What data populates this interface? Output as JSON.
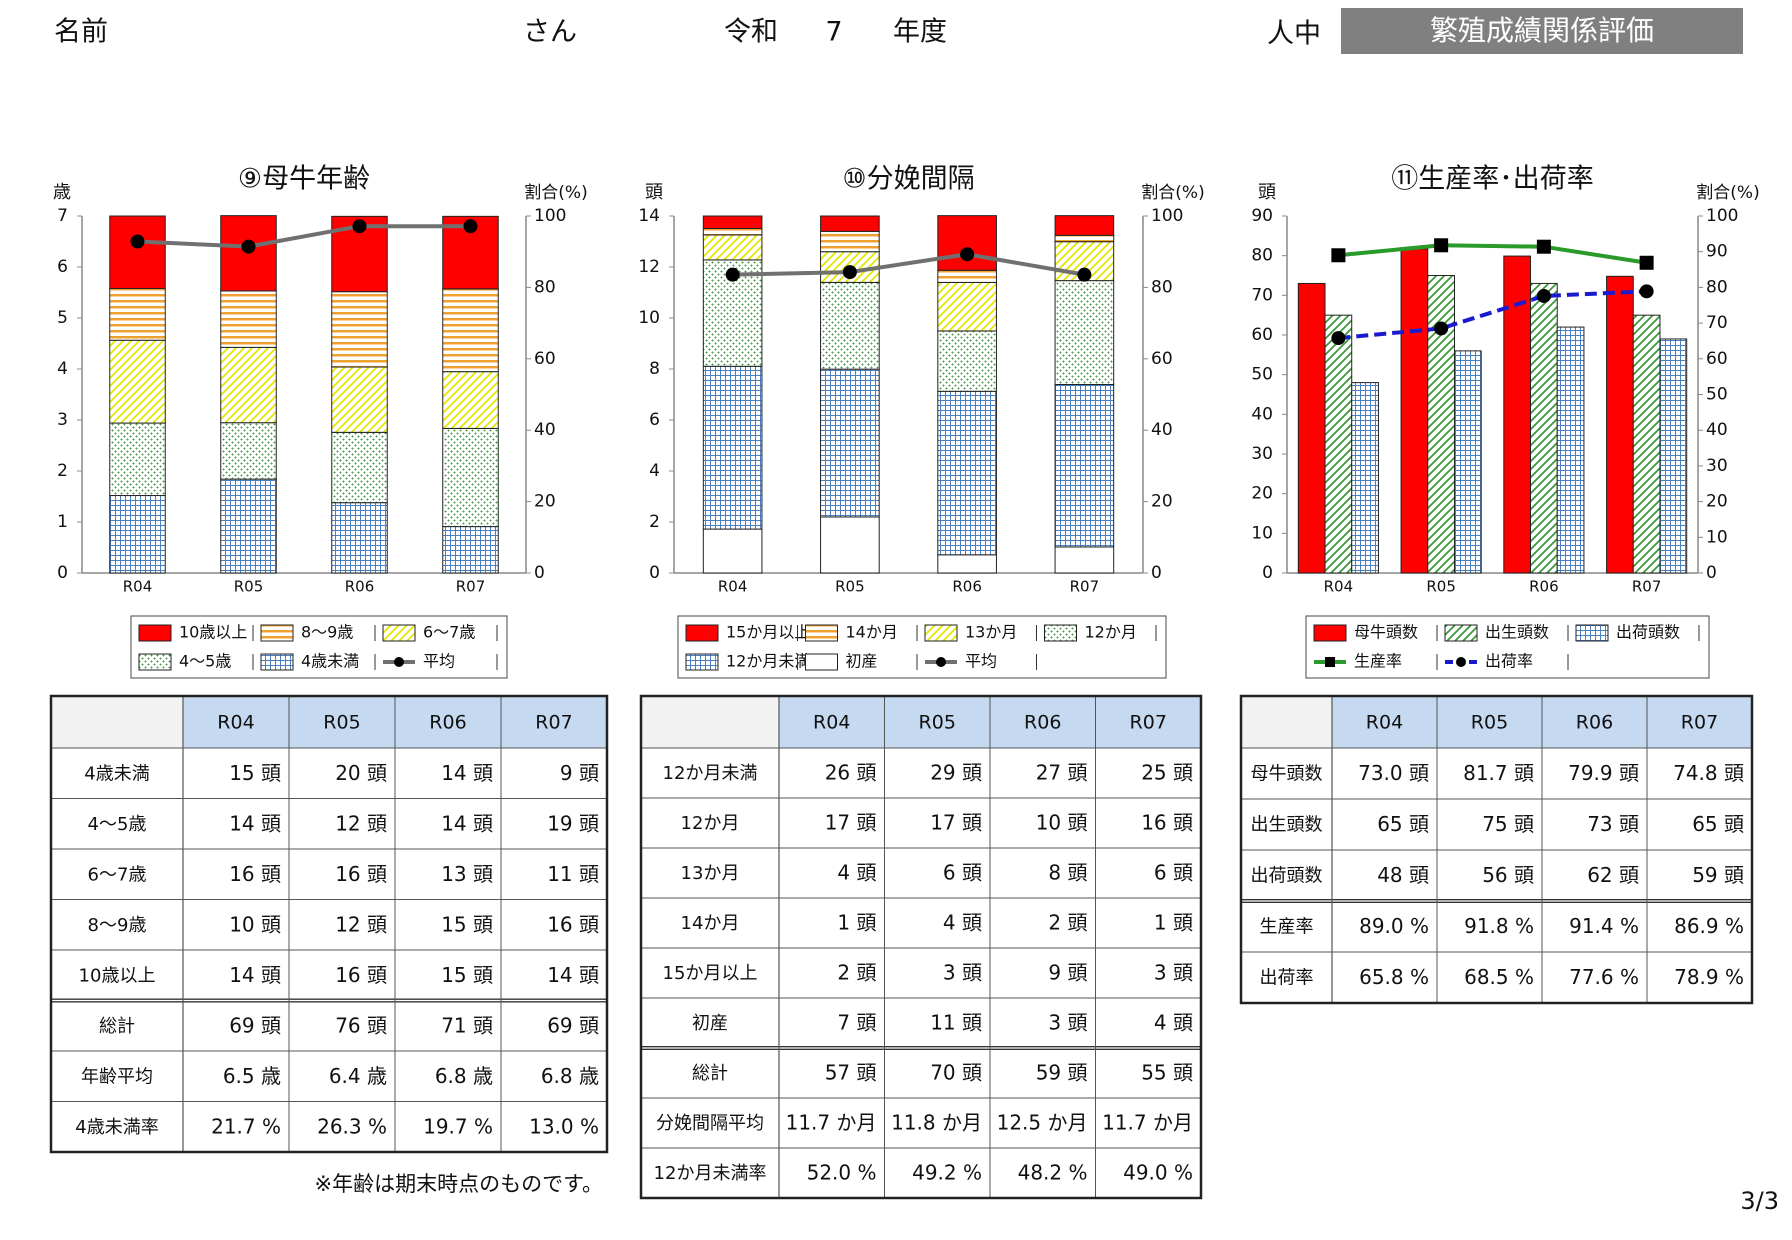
{
  "header": {
    "name_label": "名前",
    "san": "さん",
    "era": "令和",
    "year": "7",
    "nendo": "年度",
    "ninchu": "人中",
    "badge": "繁殖成績関係評価"
  },
  "chart_data": [
    {
      "type": "stacked_bar_line",
      "title": "⑨母牛年齢",
      "y_label": "歳",
      "y2_label": "割合(%)",
      "categories": [
        "R04",
        "R05",
        "R06",
        "R07"
      ],
      "ylim": [
        0,
        7
      ],
      "yticks": [
        0,
        1,
        2,
        3,
        4,
        5,
        6,
        7
      ],
      "y2lim": [
        0,
        100
      ],
      "y2ticks": [
        0,
        20,
        40,
        60,
        80,
        100
      ],
      "series": [
        {
          "name": "10歳以上",
          "color": "#ff0000",
          "pattern": "solid",
          "axis": "y2",
          "values": [
            20.3,
            21.1,
            21.1,
            20.3
          ]
        },
        {
          "name": "8～9歳",
          "color": "#f0a030",
          "pattern": "hstripe",
          "axis": "y2",
          "values": [
            14.5,
            15.8,
            21.1,
            23.2
          ]
        },
        {
          "name": "6～7歳",
          "color": "#e6e600",
          "pattern": "diagonal",
          "axis": "y2",
          "values": [
            23.2,
            21.1,
            18.3,
            15.9
          ]
        },
        {
          "name": "4～5歳",
          "color": "#4a9a4a",
          "pattern": "dots",
          "axis": "y2",
          "values": [
            20.3,
            15.8,
            19.7,
            27.5
          ]
        },
        {
          "name": "4歳未満",
          "color": "#4a7fc0",
          "pattern": "grid",
          "axis": "y2",
          "values": [
            21.7,
            26.3,
            19.7,
            13.0
          ]
        },
        {
          "name": "平均",
          "type": "line",
          "color": "#707070",
          "marker": "circle",
          "values": [
            6.5,
            6.4,
            6.8,
            6.8
          ]
        }
      ]
    },
    {
      "type": "stacked_bar_line",
      "title": "⑩分娩間隔",
      "y_label": "頭",
      "y2_label": "割合(%)",
      "categories": [
        "R04",
        "R05",
        "R06",
        "R07"
      ],
      "ylim": [
        0,
        14
      ],
      "yticks": [
        0,
        2,
        4,
        6,
        8,
        10,
        12,
        14
      ],
      "y2lim": [
        0,
        100
      ],
      "y2ticks": [
        0,
        20,
        40,
        60,
        80,
        100
      ],
      "series": [
        {
          "name": "15か月以上",
          "color": "#ff0000",
          "pattern": "solid",
          "axis": "y2",
          "values": [
            3.5,
            4.3,
            15.3,
            5.5
          ]
        },
        {
          "name": "14か月",
          "color": "#f0a030",
          "pattern": "hstripe",
          "axis": "y2",
          "values": [
            1.8,
            5.7,
            3.4,
            1.8
          ]
        },
        {
          "name": "13か月",
          "color": "#e6e600",
          "pattern": "diagonal",
          "axis": "y2",
          "values": [
            7.0,
            8.6,
            13.6,
            10.9
          ]
        },
        {
          "name": "12か月",
          "color": "#4a9a4a",
          "pattern": "dots",
          "axis": "y2",
          "values": [
            29.8,
            24.3,
            16.9,
            29.1
          ]
        },
        {
          "name": "12か月未満",
          "color": "#4a7fc0",
          "pattern": "grid",
          "axis": "y2",
          "values": [
            45.6,
            41.4,
            45.8,
            45.5
          ]
        },
        {
          "name": "初産",
          "color": "#ffffff",
          "pattern": "solid",
          "axis": "y2",
          "values": [
            12.3,
            15.7,
            5.1,
            7.3
          ]
        },
        {
          "name": "平均",
          "type": "line",
          "color": "#707070",
          "marker": "circle",
          "values": [
            11.7,
            11.8,
            12.5,
            11.7
          ]
        }
      ]
    },
    {
      "type": "grouped_bar_line",
      "title": "⑪生産率･出荷率",
      "y_label": "頭",
      "y2_label": "割合(%)",
      "categories": [
        "R04",
        "R05",
        "R06",
        "R07"
      ],
      "ylim": [
        0,
        90
      ],
      "yticks": [
        0,
        10,
        20,
        30,
        40,
        50,
        60,
        70,
        80,
        90
      ],
      "y2lim": [
        0,
        100
      ],
      "y2ticks": [
        0,
        10,
        20,
        30,
        40,
        50,
        60,
        70,
        80,
        90,
        100
      ],
      "series": [
        {
          "name": "母牛頭数",
          "color": "#ff0000",
          "pattern": "solid",
          "values": [
            73.0,
            81.7,
            79.9,
            74.8
          ]
        },
        {
          "name": "出生頭数",
          "color": "#3a9a3a",
          "pattern": "diagonal",
          "values": [
            65,
            75,
            73,
            65
          ]
        },
        {
          "name": "出荷頭数",
          "color": "#4a7fc0",
          "pattern": "grid",
          "values": [
            48,
            56,
            62,
            59
          ]
        },
        {
          "name": "生産率",
          "type": "line",
          "color": "#2a9a2a",
          "marker": "square",
          "axis": "y2",
          "values": [
            89.0,
            91.8,
            91.4,
            86.9
          ]
        },
        {
          "name": "出荷率",
          "type": "line",
          "color": "#1a1ad0",
          "marker": "circle",
          "dash": true,
          "axis": "y2",
          "values": [
            65.8,
            68.5,
            77.6,
            78.9
          ]
        }
      ]
    }
  ],
  "tables": [
    {
      "header": [
        "R04",
        "R05",
        "R06",
        "R07"
      ],
      "rows": [
        [
          "4歳未満",
          "15 頭",
          "20 頭",
          "14 頭",
          "9 頭"
        ],
        [
          "4～5歳",
          "14 頭",
          "12 頭",
          "14 頭",
          "19 頭"
        ],
        [
          "6～7歳",
          "16 頭",
          "16 頭",
          "13 頭",
          "11 頭"
        ],
        [
          "8～9歳",
          "10 頭",
          "12 頭",
          "15 頭",
          "16 頭"
        ],
        [
          "10歳以上",
          "14 頭",
          "16 頭",
          "15 頭",
          "14 頭"
        ]
      ],
      "summary_rows": [
        [
          "総計",
          "69 頭",
          "76 頭",
          "71 頭",
          "69 頭"
        ],
        [
          "年齢平均",
          "6.5 歳",
          "6.4 歳",
          "6.8 歳",
          "6.8 歳"
        ],
        [
          "4歳未満率",
          "21.7 %",
          "26.3 %",
          "19.7 %",
          "13.0 %"
        ]
      ]
    },
    {
      "header": [
        "R04",
        "R05",
        "R06",
        "R07"
      ],
      "rows": [
        [
          "12か月未満",
          "26 頭",
          "29 頭",
          "27 頭",
          "25 頭"
        ],
        [
          "12か月",
          "17 頭",
          "17 頭",
          "10 頭",
          "16 頭"
        ],
        [
          "13か月",
          "4 頭",
          "6 頭",
          "8 頭",
          "6 頭"
        ],
        [
          "14か月",
          "1 頭",
          "4 頭",
          "2 頭",
          "1 頭"
        ],
        [
          "15か月以上",
          "2 頭",
          "3 頭",
          "9 頭",
          "3 頭"
        ],
        [
          "初産",
          "7 頭",
          "11 頭",
          "3 頭",
          "4 頭"
        ]
      ],
      "summary_rows": [
        [
          "総計",
          "57 頭",
          "70 頭",
          "59 頭",
          "55 頭"
        ],
        [
          "分娩間隔平均",
          "11.7 か月",
          "11.8 か月",
          "12.5 か月",
          "11.7 か月"
        ],
        [
          "12か月未満率",
          "52.0 %",
          "49.2 %",
          "48.2 %",
          "49.0 %"
        ]
      ]
    },
    {
      "header": [
        "R04",
        "R05",
        "R06",
        "R07"
      ],
      "rows": [
        [
          "母牛頭数",
          "73.0 頭",
          "81.7 頭",
          "79.9 頭",
          "74.8 頭"
        ],
        [
          "出生頭数",
          "65 頭",
          "75 頭",
          "73 頭",
          "65 頭"
        ],
        [
          "出荷頭数",
          "48 頭",
          "56 頭",
          "62 頭",
          "59 頭"
        ]
      ],
      "summary_rows": [
        [
          "生産率",
          "89.0 %",
          "91.8 %",
          "91.4 %",
          "86.9 %"
        ],
        [
          "出荷率",
          "65.8 %",
          "68.5 %",
          "77.6 %",
          "78.9 %"
        ]
      ]
    }
  ],
  "note": "※年齢は期末時点のものです。",
  "page": "3/3"
}
